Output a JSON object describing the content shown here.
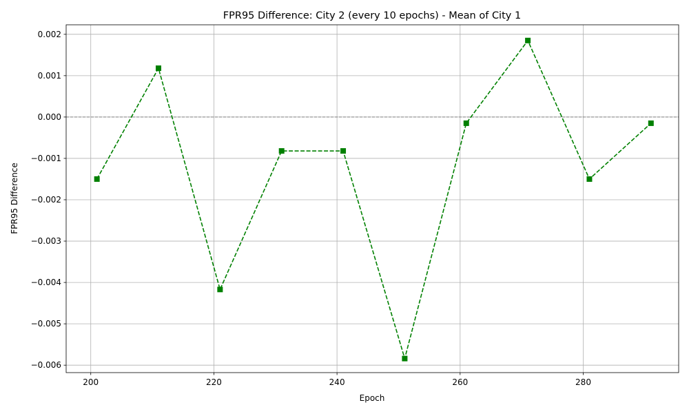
{
  "chart_data": {
    "type": "line",
    "title": "FPR95 Difference: City 2 (every 10 epochs) - Mean of City 1",
    "xlabel": "Epoch",
    "ylabel": "FPR95 Difference",
    "xlim": [
      196,
      295.5
    ],
    "ylim": [
      -0.00618,
      0.00223
    ],
    "x_ticks": [
      200,
      220,
      240,
      260,
      280
    ],
    "x_tick_labels": [
      "200",
      "220",
      "240",
      "260",
      "280"
    ],
    "y_ticks": [
      0.002,
      0.001,
      0.0,
      -0.001,
      -0.002,
      -0.003,
      -0.004,
      -0.005,
      -0.006
    ],
    "y_tick_labels": [
      "0.002",
      "0.001",
      "0.000",
      "−0.001",
      "−0.002",
      "−0.003",
      "−0.004",
      "−0.005",
      "−0.006"
    ],
    "grid": true,
    "reference_line": {
      "y": 0.0,
      "color": "#808080",
      "style": "dashed"
    },
    "series": [
      {
        "color": "#008000",
        "line_style": "dashed",
        "marker": "square",
        "x": [
          201,
          211,
          221,
          231,
          241,
          251,
          261,
          271,
          281,
          291
        ],
        "y": [
          -0.0015,
          0.00118,
          -0.00417,
          -0.00082,
          -0.00082,
          -0.00584,
          -0.00015,
          0.00185,
          -0.0015,
          -0.00015
        ]
      }
    ]
  }
}
